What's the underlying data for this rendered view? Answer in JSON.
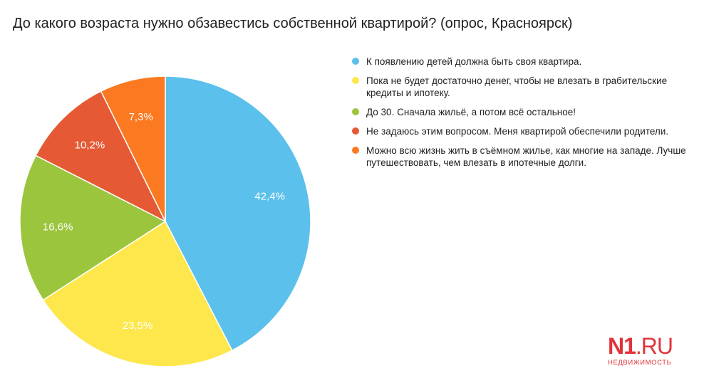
{
  "title": "До какого возраста нужно обзавестись собственной квартирой? (опрос, Красноярск)",
  "chart_data": {
    "type": "pie",
    "title": "До какого возраста нужно обзавестись собственной квартирой? (опрос, Красноярск)",
    "labels": [
      "К появлению детей должна быть своя квартира.",
      "Пока не будет достаточно денег, чтобы не влезать в грабительские кредиты и ипотеку.",
      "До 30. Сначала жильё, а потом всё остальное!",
      "Не задаюсь этим вопросом. Меня квартирой обеспечили родители.",
      "Можно всю жизнь жить в съёмном жилье, как многие на западе. Лучше путешествовать, чем влезать в ипотечные долги."
    ],
    "values": [
      42.4,
      23.5,
      16.6,
      10.2,
      7.3
    ],
    "value_labels": [
      "42,4%",
      "23,5%",
      "16,6%",
      "10,2%",
      "7,3%"
    ],
    "colors": [
      "#5bc0eb",
      "#fde74c",
      "#9bc53d",
      "#e55934",
      "#fa7921"
    ],
    "legend_position": "right"
  },
  "logo": {
    "n1": "N1",
    "ru": ".RU",
    "sub": "НЕДВИЖИМОСТЬ"
  }
}
